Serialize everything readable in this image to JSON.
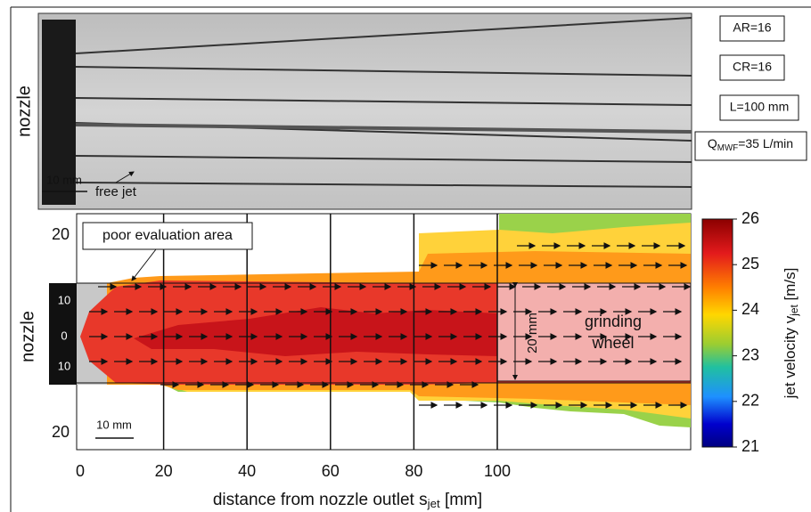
{
  "photo": {
    "y_label": "nozzle",
    "scale_label": "10 mm",
    "jet_label": "free jet",
    "params": [
      "AR=16",
      "CR=16",
      "L=100 mm"
    ],
    "flow": {
      "main": "Q",
      "sub": "MWF",
      "rest": "=35 L/min"
    }
  },
  "plot": {
    "y_label": "nozzle",
    "x_label": {
      "main": "distance from nozzle outlet s",
      "sub": "jet",
      "rest": " [mm]"
    },
    "x_ticks": [
      0,
      20,
      40,
      60,
      80,
      100
    ],
    "y_ticks": [
      20,
      20
    ],
    "nozzle_ticks": [
      10,
      0,
      10
    ],
    "poor_label": "poor evaluation area",
    "gap_label": "20 mm",
    "wheel_label": "grinding wheel",
    "scale_label": "10 mm"
  },
  "colorbar": {
    "label": {
      "main": "jet velocity v",
      "sub": "jet",
      "rest": " [m/s]"
    },
    "ticks": [
      26,
      25,
      24,
      23,
      22,
      21
    ]
  }
}
